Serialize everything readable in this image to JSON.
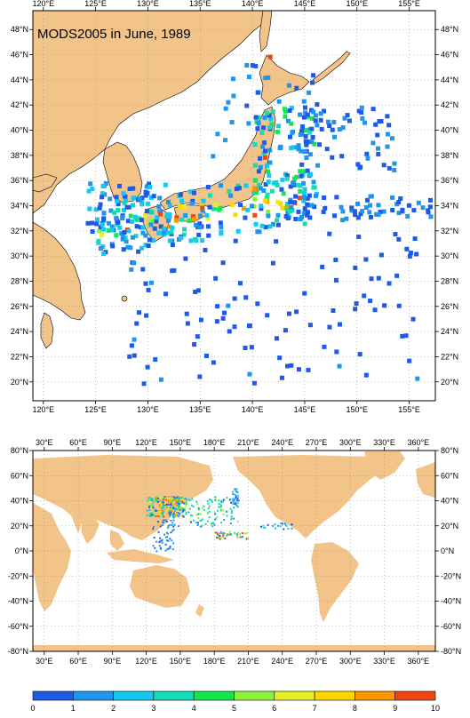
{
  "title": "MODS2005 in June, 1989",
  "colors": {
    "land": "#f2c48a",
    "ocean": "#ffffff",
    "frame": "#000000",
    "grid_dot": "#777777"
  },
  "top_map": {
    "lon_ticks": [
      "120°E",
      "125°E",
      "130°E",
      "135°E",
      "140°E",
      "145°E",
      "150°E",
      "155°E"
    ],
    "lat_ticks": [
      "48°N",
      "46°N",
      "44°N",
      "42°N",
      "40°N",
      "38°N",
      "36°N",
      "34°N",
      "32°N",
      "30°N",
      "28°N",
      "26°N",
      "24°N",
      "22°N",
      "20°N"
    ],
    "lon_range": [
      119,
      157.5
    ],
    "lat_range": [
      18.5,
      49.5
    ]
  },
  "bottom_map": {
    "lon_ticks": [
      "30°E",
      "60°E",
      "90°E",
      "120°E",
      "150°E",
      "180°E",
      "210°E",
      "240°E",
      "270°E",
      "300°E",
      "330°E",
      "360°E"
    ],
    "lat_ticks": [
      "80°N",
      "60°N",
      "40°N",
      "20°N",
      "0°N",
      "-20°N",
      "-40°N",
      "-60°N",
      "-80°N"
    ],
    "lon_range": [
      20,
      375
    ],
    "lat_range": [
      -80,
      80
    ]
  },
  "colorbar": {
    "labels": [
      "0",
      "1",
      "2",
      "3",
      "4",
      "5",
      "6",
      "7",
      "8",
      "9",
      "10"
    ],
    "colors": [
      "#1e5ae6",
      "#1e96f0",
      "#14c8f0",
      "#14dcb4",
      "#14e650",
      "#8cf03c",
      "#e6f028",
      "#ffd700",
      "#ff9600",
      "#f04614"
    ]
  }
}
